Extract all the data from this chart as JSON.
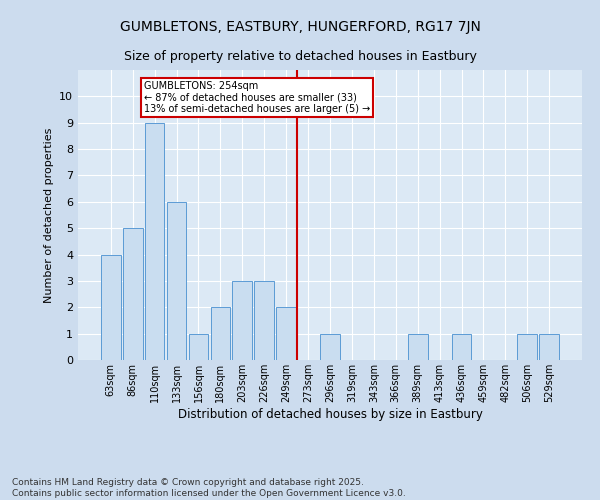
{
  "title1": "GUMBLETONS, EASTBURY, HUNGERFORD, RG17 7JN",
  "title2": "Size of property relative to detached houses in Eastbury",
  "xlabel": "Distribution of detached houses by size in Eastbury",
  "ylabel": "Number of detached properties",
  "categories": [
    "63sqm",
    "86sqm",
    "110sqm",
    "133sqm",
    "156sqm",
    "180sqm",
    "203sqm",
    "226sqm",
    "249sqm",
    "273sqm",
    "296sqm",
    "319sqm",
    "343sqm",
    "366sqm",
    "389sqm",
    "413sqm",
    "436sqm",
    "459sqm",
    "482sqm",
    "506sqm",
    "529sqm"
  ],
  "values": [
    4,
    5,
    9,
    6,
    1,
    2,
    3,
    3,
    2,
    0,
    1,
    0,
    0,
    0,
    1,
    0,
    1,
    0,
    0,
    1,
    1
  ],
  "bar_color": "#c9ddf0",
  "bar_edge_color": "#5b9bd5",
  "property_line_x": 8.5,
  "annotation_text": "GUMBLETONS: 254sqm\n← 87% of detached houses are smaller (33)\n13% of semi-detached houses are larger (5) →",
  "annotation_box_color": "#ffffff",
  "annotation_box_edge": "#cc0000",
  "line_color": "#cc0000",
  "background_color": "#ccdcee",
  "plot_bg_color": "#dce9f5",
  "grid_color": "#ffffff",
  "ylim": [
    0,
    11
  ],
  "yticks": [
    0,
    1,
    2,
    3,
    4,
    5,
    6,
    7,
    8,
    9,
    10,
    11
  ],
  "title1_fontsize": 10,
  "title2_fontsize": 9,
  "xlabel_fontsize": 8.5,
  "ylabel_fontsize": 8,
  "footer_text": "Contains HM Land Registry data © Crown copyright and database right 2025.\nContains public sector information licensed under the Open Government Licence v3.0.",
  "footer_fontsize": 6.5
}
